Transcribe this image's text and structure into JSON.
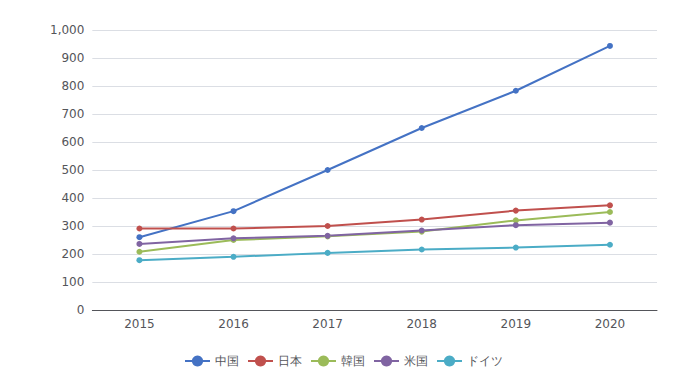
{
  "chart_data": {
    "type": "line",
    "categories": [
      "2015",
      "2016",
      "2017",
      "2018",
      "2019",
      "2020"
    ],
    "series": [
      {
        "name": "中国",
        "color": "#4472C4",
        "marker": "circle",
        "values": [
          260,
          353,
          500,
          650,
          783,
          943
        ]
      },
      {
        "name": "日本",
        "color": "#C0504D",
        "marker": "circle",
        "values": [
          291,
          291,
          300,
          323,
          355,
          374
        ]
      },
      {
        "name": "韓国",
        "color": "#9BBB59",
        "marker": "circle",
        "values": [
          208,
          250,
          263,
          280,
          320,
          350
        ]
      },
      {
        "name": "米国",
        "color": "#8064A2",
        "marker": "circle",
        "values": [
          236,
          256,
          265,
          284,
          303,
          312
        ]
      },
      {
        "name": "ドイツ",
        "color": "#4BACC6",
        "marker": "circle",
        "values": [
          178,
          190,
          204,
          216,
          223,
          233
        ]
      }
    ],
    "ylim": [
      0,
      1000
    ],
    "yticks": [
      0,
      100,
      200,
      300,
      400,
      500,
      600,
      700,
      800,
      900,
      {
        "value": 1000,
        "label": "1,000"
      }
    ],
    "grid": true,
    "legend": "bottom"
  }
}
